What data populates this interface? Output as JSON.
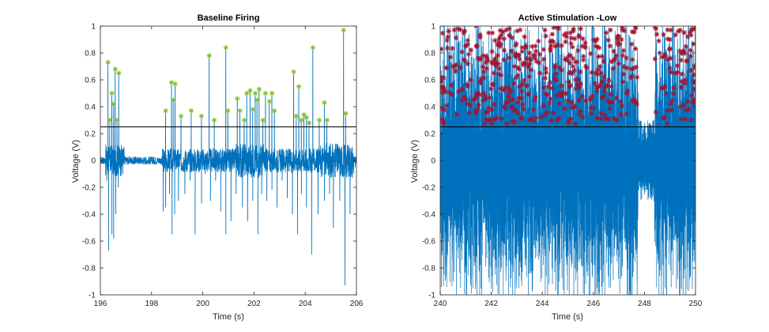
{
  "figure": {
    "background": "#ffffff"
  },
  "chart_data": [
    {
      "type": "line",
      "title": "Baseline Firing",
      "xlabel": "Time (s)",
      "ylabel": "Voltage (V)",
      "xlim": [
        196,
        206
      ],
      "ylim": [
        -1,
        1
      ],
      "xticks": [
        "196",
        "198",
        "200",
        "202",
        "204",
        "206"
      ],
      "yticks": [
        "-1",
        "-0.8",
        "-0.6",
        "-0.4",
        "-0.2",
        "0",
        "0.2",
        "0.4",
        "0.6",
        "0.8",
        "1"
      ],
      "grid": false,
      "threshold": 0.25,
      "signal_color": "#0072BD",
      "marker_color": "#7FBF1F",
      "threshold_color": "#000000",
      "series": [
        {
          "x": [
            196.1,
            196.25,
            196.32,
            196.38,
            196.45,
            196.52,
            196.6,
            196.7,
            196.85,
            197.1,
            197.4,
            197.7,
            198.0,
            198.3,
            198.45,
            198.55,
            198.7,
            198.8,
            198.9,
            199.05,
            199.3,
            199.5,
            199.7,
            199.95,
            200.1,
            200.3,
            200.5,
            200.7,
            200.9,
            201.1,
            201.3,
            201.55,
            201.75,
            201.95,
            202.15,
            202.3,
            202.5,
            202.7,
            202.9,
            203.1,
            203.3,
            203.5,
            203.7,
            203.85,
            204.05,
            204.25,
            204.5,
            204.75,
            204.95,
            205.1,
            205.35,
            205.55,
            205.75,
            205.95
          ],
          "y": [
            0.02,
            -0.15,
            -0.67,
            0.1,
            -0.55,
            -0.58,
            -0.4,
            -0.2,
            0.05,
            -0.02,
            0.01,
            0.0,
            -0.01,
            0.01,
            -0.38,
            -0.35,
            -0.25,
            -0.55,
            -0.4,
            -0.3,
            -0.25,
            -0.15,
            -0.55,
            -0.32,
            -0.1,
            -0.3,
            -0.15,
            -0.38,
            -0.55,
            -0.45,
            -0.25,
            -0.35,
            -0.45,
            -0.3,
            -0.55,
            -0.25,
            -0.3,
            -0.22,
            -0.35,
            -0.15,
            -0.28,
            -0.4,
            -0.55,
            -0.25,
            -0.35,
            -0.7,
            -0.4,
            -0.3,
            -0.25,
            -0.5,
            -0.3,
            -0.93,
            -0.4,
            -0.05
          ]
        }
      ],
      "peaks": {
        "x": [
          196.3,
          196.37,
          196.45,
          196.52,
          196.58,
          196.65,
          196.72,
          198.55,
          198.78,
          198.85,
          198.92,
          199.15,
          199.55,
          199.95,
          200.25,
          200.45,
          200.9,
          200.98,
          201.35,
          201.45,
          201.62,
          201.72,
          201.85,
          201.95,
          202.05,
          202.12,
          202.2,
          202.35,
          202.45,
          202.6,
          202.7,
          202.8,
          203.55,
          203.65,
          203.75,
          203.85,
          203.95,
          204.05,
          204.15,
          204.3,
          204.55,
          204.75,
          204.85,
          205.5,
          205.58
        ],
        "y": [
          0.73,
          0.3,
          0.5,
          0.42,
          0.68,
          0.3,
          0.65,
          0.37,
          0.58,
          0.45,
          0.57,
          0.33,
          0.37,
          0.33,
          0.78,
          0.3,
          0.84,
          0.37,
          0.46,
          0.37,
          0.3,
          0.5,
          0.52,
          0.38,
          0.5,
          0.45,
          0.53,
          0.3,
          0.5,
          0.44,
          0.5,
          0.37,
          0.66,
          0.33,
          0.55,
          0.3,
          0.34,
          0.32,
          0.28,
          0.84,
          0.3,
          0.43,
          0.3,
          0.97,
          0.35
        ]
      }
    },
    {
      "type": "line",
      "title": "Active Stimulation -Low",
      "xlabel": "Time (s)",
      "ylabel": "Voltage (V)",
      "xlim": [
        240,
        250
      ],
      "ylim": [
        -1,
        1
      ],
      "xticks": [
        "240",
        "242",
        "244",
        "246",
        "248",
        "250"
      ],
      "yticks": [
        "-1",
        "-0.8",
        "-0.6",
        "-0.4",
        "-0.2",
        "0",
        "0.2",
        "0.4",
        "0.6",
        "0.8",
        "1"
      ],
      "grid": false,
      "threshold": 0.25,
      "signal_color": "#0072BD",
      "marker_color": "#A2142F",
      "threshold_color": "#000000",
      "series": [],
      "peaks": {
        "x": [
          240.1,
          240.3,
          240.5,
          240.7,
          240.85,
          241.0,
          241.2,
          241.4,
          241.55,
          241.7,
          241.9,
          242.1,
          242.3,
          242.5,
          242.7,
          242.9,
          243.1,
          243.3,
          243.5,
          243.7,
          243.9,
          244.1,
          244.3,
          244.5,
          244.7,
          244.9,
          245.1,
          245.3,
          245.5,
          245.7,
          245.9,
          246.1,
          246.3,
          246.5,
          246.7,
          246.9,
          247.1,
          247.3,
          247.5,
          247.7,
          248.45,
          248.6,
          248.8,
          249.0,
          249.2,
          249.4,
          249.6,
          249.8,
          249.95
        ],
        "y": [
          0.55,
          0.92,
          0.7,
          0.98,
          0.45,
          0.85,
          0.6,
          1.0,
          0.75,
          0.5,
          0.95,
          0.65,
          0.88,
          0.4,
          0.98,
          0.7,
          0.55,
          0.92,
          0.8,
          0.45,
          0.65,
          0.97,
          0.58,
          0.85,
          0.5,
          0.75,
          0.95,
          0.6,
          0.98,
          0.7,
          0.45,
          0.85,
          0.65,
          0.95,
          0.55,
          0.78,
          0.9,
          0.5,
          0.68,
          0.42,
          0.98,
          0.8,
          0.55,
          0.9,
          0.65,
          0.97,
          0.6,
          0.82,
          0.45
        ]
      }
    }
  ]
}
